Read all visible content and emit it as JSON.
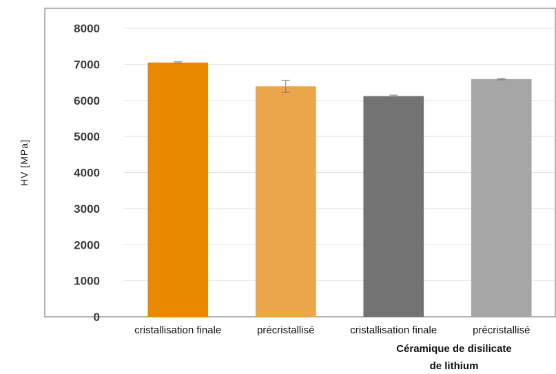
{
  "chart_data": {
    "type": "bar",
    "categories": [
      "cristallisation finale",
      "précristallisé",
      "cristallisation finale",
      "précristallisé"
    ],
    "values": [
      7050,
      6390,
      6120,
      6590
    ],
    "errors": [
      20,
      170,
      25,
      20
    ],
    "colors": [
      "#E88A00",
      "#EBA54A",
      "#737373",
      "#A6A6A6"
    ],
    "group_label_lines": [
      "Céramique de disilicate",
      "de lithium"
    ],
    "ylabel": "HV [MPa]",
    "ylim": [
      0,
      8000
    ],
    "yticks": [
      0,
      1000,
      2000,
      3000,
      4000,
      5000,
      6000,
      7000,
      8000
    ],
    "grid": true,
    "legend": "none"
  }
}
